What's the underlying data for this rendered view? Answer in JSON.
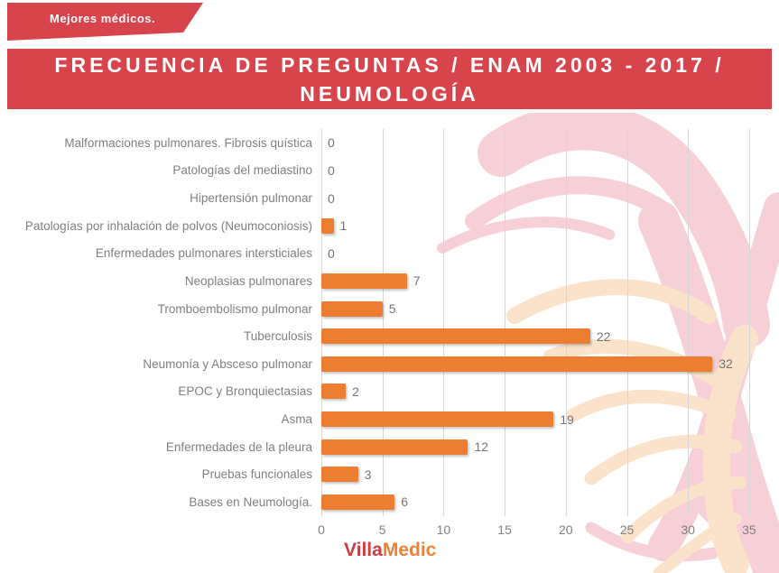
{
  "badge": {
    "label": "Mejores médicos."
  },
  "header": {
    "title_line1": "FRECUENCIA DE PREGUNTAS / ENAM 2003 - 2017 /",
    "title_line2": "NEUMOLOGÍA"
  },
  "footer": {
    "logo_part1": "Villa",
    "logo_part2": "Medic"
  },
  "colors": {
    "banner_red": "#d8444c",
    "bar_orange": "#ed7d31",
    "label_gray": "#7f7f7f",
    "gridline_gray": "#d6d6d6",
    "logo_red": "#d23b44",
    "logo_orange": "#f08034",
    "phoenix_pink": "#f7cfd6",
    "phoenix_pale_orange": "#fbe3cb"
  },
  "chart_data": {
    "type": "bar",
    "orientation": "horizontal",
    "title": "FRECUENCIA DE PREGUNTAS / ENAM 2003 - 2017 / NEUMOLOGÍA",
    "categories": [
      "Malformaciones pulmonares. Fibrosis quística",
      "Patologías del mediastino",
      "Hipertensión pulmonar",
      "Patologías por inhalación de polvos (Neumoconiosis)",
      "Enfermedades pulmonares intersticiales",
      "Neoplasias pulmonares",
      "Tromboembolismo pulmonar",
      "Tuberculosis",
      "Neumonía y Absceso pulmonar",
      "EPOC y Bronquiectasias",
      "Asma",
      "Enfermedades de la pleura",
      "Pruebas funcionales",
      "Bases en Neumología."
    ],
    "values": [
      0,
      0,
      0,
      1,
      0,
      7,
      5,
      22,
      32,
      2,
      19,
      12,
      3,
      6
    ],
    "xlim": [
      0,
      35
    ],
    "x_ticks": [
      0,
      5,
      10,
      15,
      20,
      25,
      30,
      35
    ],
    "grid": true,
    "legend": false,
    "data_labels": true,
    "bar_color": "#ed7d31"
  }
}
